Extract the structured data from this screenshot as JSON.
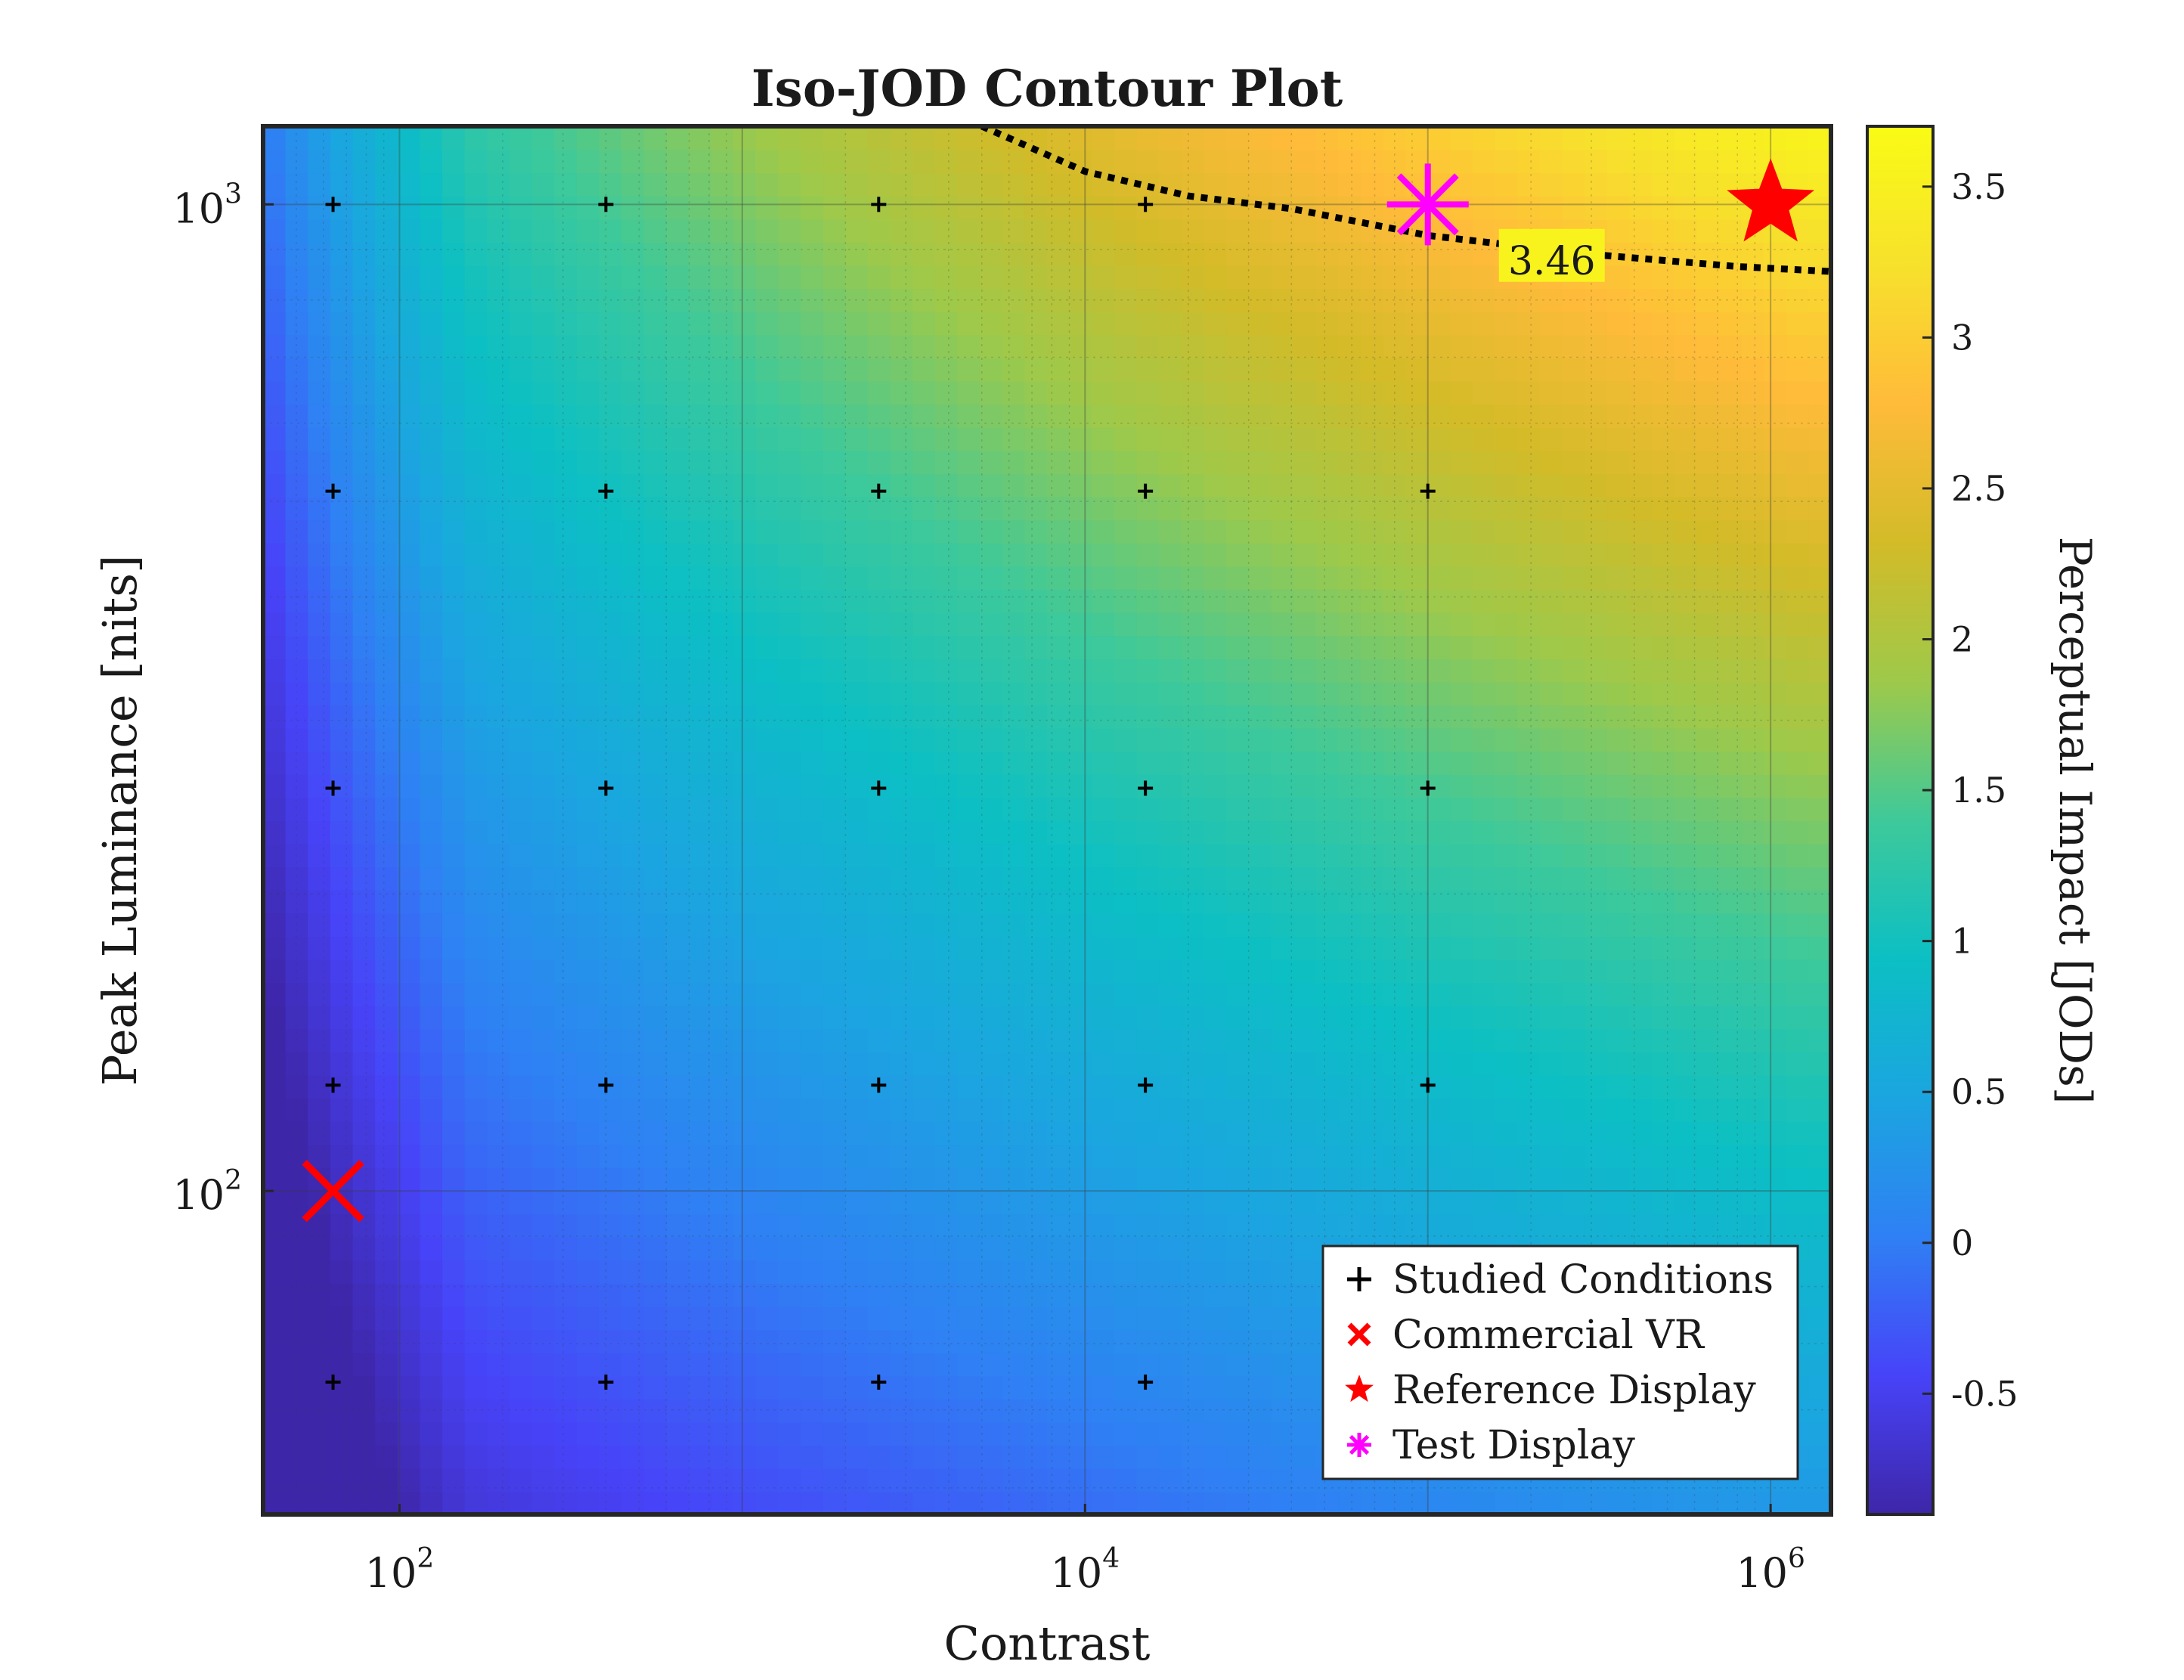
{
  "chart_data": {
    "type": "heatmap",
    "title": "Iso-JOD Contour Plot",
    "xlabel": "Contrast",
    "ylabel": "Peak Luminance [nits]",
    "x_scale": "log",
    "y_scale": "log",
    "xlim": [
      40,
      1500000
    ],
    "ylim": [
      47,
      1200
    ],
    "x_ticks": [
      {
        "value": 100,
        "base": "10",
        "exp": "2"
      },
      {
        "value": 10000,
        "base": "10",
        "exp": "4"
      },
      {
        "value": 1000000,
        "base": "10",
        "exp": "6"
      }
    ],
    "y_ticks": [
      {
        "value": 100,
        "base": "10",
        "exp": "2"
      },
      {
        "value": 1000,
        "base": "10",
        "exp": "3"
      }
    ],
    "grid": true,
    "colorbar": {
      "label": "Perceptual Impact [JODs]",
      "range": [
        -0.9,
        3.7
      ],
      "ticks": [
        -0.5,
        0,
        0.5,
        1,
        1.5,
        2,
        2.5,
        3,
        3.5
      ],
      "tick_labels": [
        "-0.5",
        "0",
        "0.5",
        "1",
        "1.5",
        "2",
        "2.5",
        "3",
        "3.5"
      ]
    },
    "contour": {
      "level_label": "3.46",
      "points": [
        [
          5000,
          1200
        ],
        [
          10000,
          1080
        ],
        [
          20000,
          1020
        ],
        [
          40000,
          990
        ],
        [
          100000,
          930
        ],
        [
          300000,
          890
        ],
        [
          800000,
          865
        ],
        [
          1500000,
          855
        ]
      ]
    },
    "studied_conditions": {
      "contrast": [
        64,
        400,
        2500,
        15000,
        100000
      ],
      "luminance": [
        64,
        128,
        256,
        512,
        1000
      ]
    },
    "commercial_vr": {
      "contrast": 64,
      "luminance": 100
    },
    "reference_display": {
      "contrast": 1000000,
      "luminance": 1000
    },
    "test_display": {
      "contrast": 100000,
      "luminance": 1000
    },
    "legend": {
      "placement": "bottom-right",
      "entries": [
        {
          "label": "Studied Conditions",
          "marker": "plus",
          "color": "#000000"
        },
        {
          "label": "Commercial VR",
          "marker": "x",
          "color": "#ff0000"
        },
        {
          "label": "Reference Display",
          "marker": "star",
          "color": "#ff0000"
        },
        {
          "label": "Test Display",
          "marker": "asterisk",
          "color": "#ff00ff"
        }
      ]
    },
    "colors": {
      "parula": [
        "#3e26a8",
        "#4743f8",
        "#2f80f4",
        "#1ba5e0",
        "#0cbfc4",
        "#3ec99a",
        "#9ec94a",
        "#d3bb28",
        "#ffbb3a",
        "#f7e12c",
        "#f9fb15"
      ]
    }
  }
}
